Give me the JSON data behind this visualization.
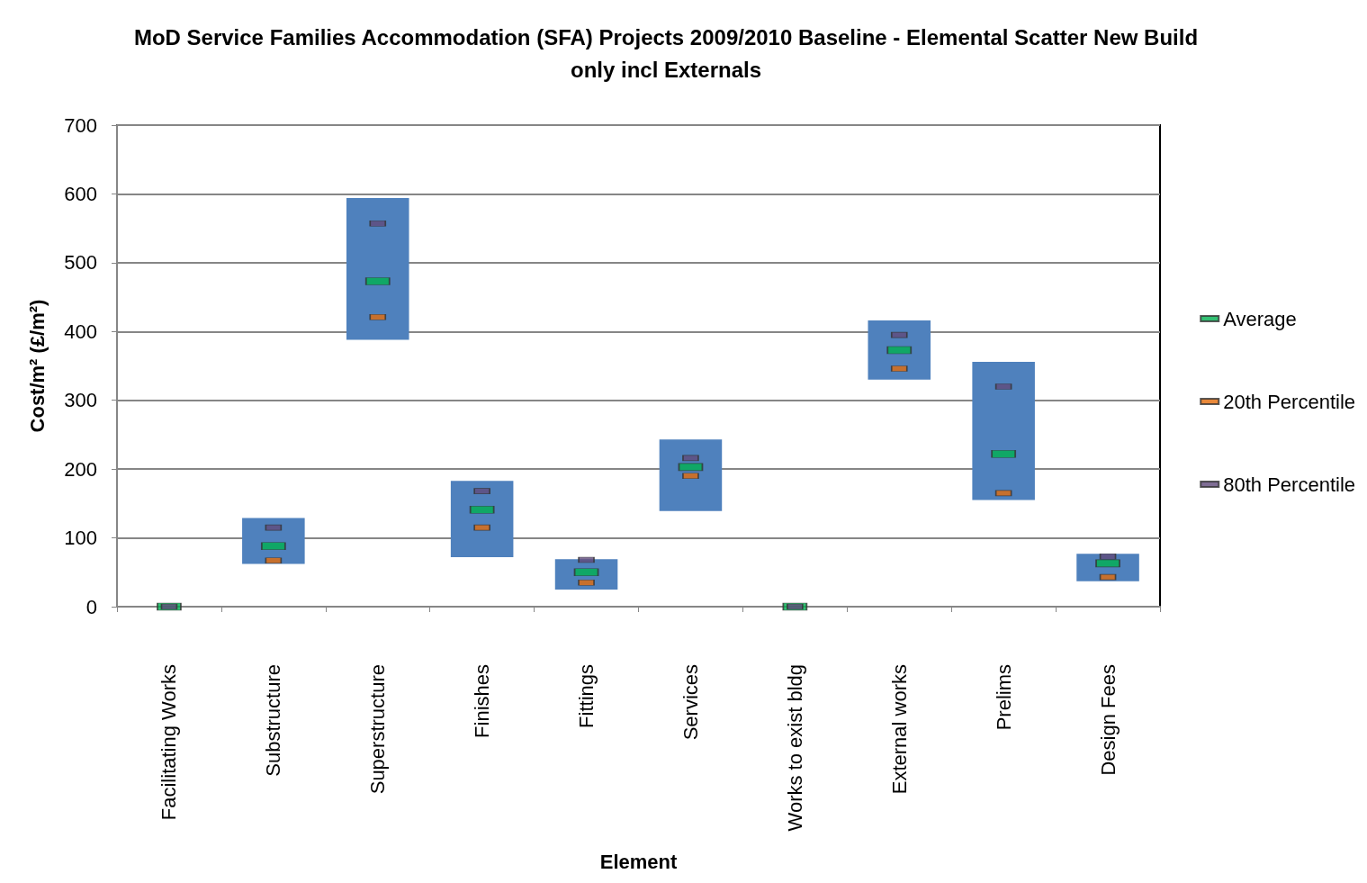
{
  "chart_data": {
    "type": "bar",
    "title": "MoD Service Families Accommodation (SFA) Projects 2009/2010 Baseline - Elemental Scatter New Build\nonly incl Externals",
    "xlabel": "Element",
    "ylabel": "Cost/m² (£/m²)",
    "categories": [
      "Facilitating Works",
      "Substructure",
      "Superstructure",
      "Finishes",
      "Fittings",
      "Services",
      "Works to exist bldg",
      "External works",
      "Prelims",
      "Design Fees"
    ],
    "series": [
      {
        "type": "bar",
        "color": "#4f81bd",
        "base": [
          null,
          62,
          388,
          72,
          25,
          139,
          null,
          330,
          155,
          37
        ],
        "values": [
          null,
          67,
          206,
          111,
          44,
          104,
          null,
          86,
          201,
          40
        ]
      },
      {
        "type": "scatter",
        "name": "Average",
        "color": "#00b050",
        "x": [
          "Facilitating Works",
          "Substructure",
          "Superstructure",
          "Finishes",
          "Fittings",
          "Services",
          "Works to exist bldg",
          "External works",
          "Prelims",
          "Design Fees"
        ],
        "values": [
          0,
          88,
          473,
          141,
          50,
          203,
          0,
          373,
          222,
          63
        ]
      },
      {
        "type": "scatter",
        "name": "20th Percentile",
        "color": "#e46c0a",
        "x": [
          "Facilitating Works",
          "Substructure",
          "Superstructure",
          "Finishes",
          "Fittings",
          "Services",
          "Works to exist bldg",
          "External works",
          "Prelims",
          "Design Fees"
        ],
        "values": [
          null,
          67,
          421,
          115,
          35,
          190,
          null,
          346,
          165,
          43
        ]
      },
      {
        "type": "scatter",
        "name": "80th Percentile",
        "color": "#604a7b",
        "x": [
          "Facilitating Works",
          "Substructure",
          "Superstructure",
          "Finishes",
          "Fittings",
          "Services",
          "Works to exist bldg",
          "External works",
          "Prelims",
          "Design Fees"
        ],
        "values": [
          0,
          115,
          557,
          168,
          68,
          216,
          0,
          395,
          320,
          73
        ]
      }
    ],
    "ylim": [
      0,
      700
    ],
    "yticks": [
      0,
      100,
      200,
      300,
      400,
      500,
      600,
      700
    ],
    "grid": "y",
    "legend": "right"
  }
}
